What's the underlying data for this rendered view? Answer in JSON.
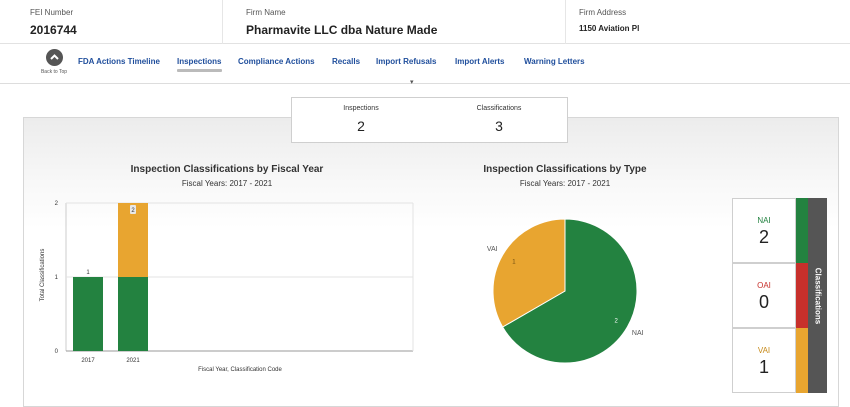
{
  "header": {
    "fei_label": "FEI Number",
    "fei_value": "2016744",
    "firm_label": "Firm Name",
    "firm_value": "Pharmavite LLC dba Nature Made",
    "address_label": "Firm Address",
    "address_value": "1150 Aviation Pl"
  },
  "nav": {
    "back_label": "Back to Top",
    "items": [
      "FDA Actions Timeline",
      "Inspections",
      "Compliance Actions",
      "Recalls",
      "Import Refusals",
      "Import Alerts",
      "Warning Letters"
    ],
    "active": "Inspections"
  },
  "summary": {
    "inspections_label": "Inspections",
    "inspections_value": "2",
    "classifications_label": "Classifications",
    "classifications_value": "3"
  },
  "colors": {
    "NAI": "#238240",
    "OAI": "#c7302b",
    "VAI": "#e8a530",
    "tab": "#555555"
  },
  "chart_data": [
    {
      "type": "bar",
      "title": "Inspection Classifications by Fiscal Year",
      "subtitle": "Fiscal Years: 2017 - 2021",
      "xlabel": "Fiscal Year, Classification Code",
      "ylabel": "Total Classifications",
      "categories": [
        "2017",
        "2021"
      ],
      "series": [
        {
          "name": "NAI",
          "values": [
            1,
            1
          ]
        },
        {
          "name": "VAI",
          "values": [
            0,
            1
          ]
        }
      ],
      "totals": [
        "1",
        "2"
      ],
      "yticks": [
        "0",
        "1",
        "2"
      ],
      "ylim": [
        0,
        2
      ]
    },
    {
      "type": "pie",
      "title": "Inspection Classifications by Type",
      "subtitle": "Fiscal Years: 2017 - 2021",
      "slices": [
        {
          "label": "NAI",
          "value": 2
        },
        {
          "label": "VAI",
          "value": 1
        }
      ]
    }
  ],
  "legend": {
    "title": "Classifications",
    "items": [
      {
        "label": "NAI",
        "value": "2"
      },
      {
        "label": "OAI",
        "value": "0"
      },
      {
        "label": "VAI",
        "value": "1"
      }
    ]
  }
}
